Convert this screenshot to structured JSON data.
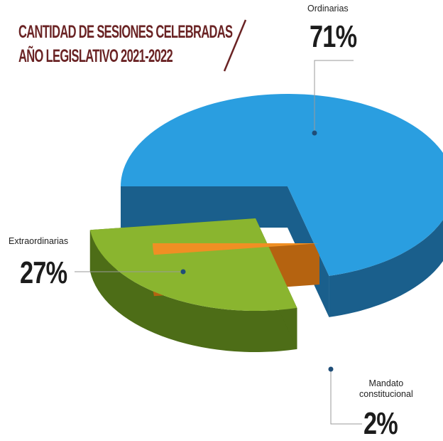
{
  "chart_data": {
    "type": "pie",
    "title_line1": "CANTIDAD DE SESIONES CELEBRADAS",
    "title_line2": "AÑO LEGISLATIVO 2021-2022",
    "slices": [
      {
        "label": "Ordinarias",
        "value": 71,
        "display": "71%",
        "color": "#2a9ee0",
        "side_color": "#1a5f8c"
      },
      {
        "label": "Extraordinarias",
        "value": 27,
        "display": "27%",
        "color": "#8ab52f",
        "side_color": "#4d6d17"
      },
      {
        "label_line1": "Mandato",
        "label_line2": "constitucional",
        "value": 2,
        "display": "2%",
        "color": "#f08f24",
        "side_color": "#b56310"
      }
    ]
  },
  "colors": {
    "title": "#6a2324",
    "accent_line": "#6a2324",
    "leader_line": "#9a9a9a"
  }
}
